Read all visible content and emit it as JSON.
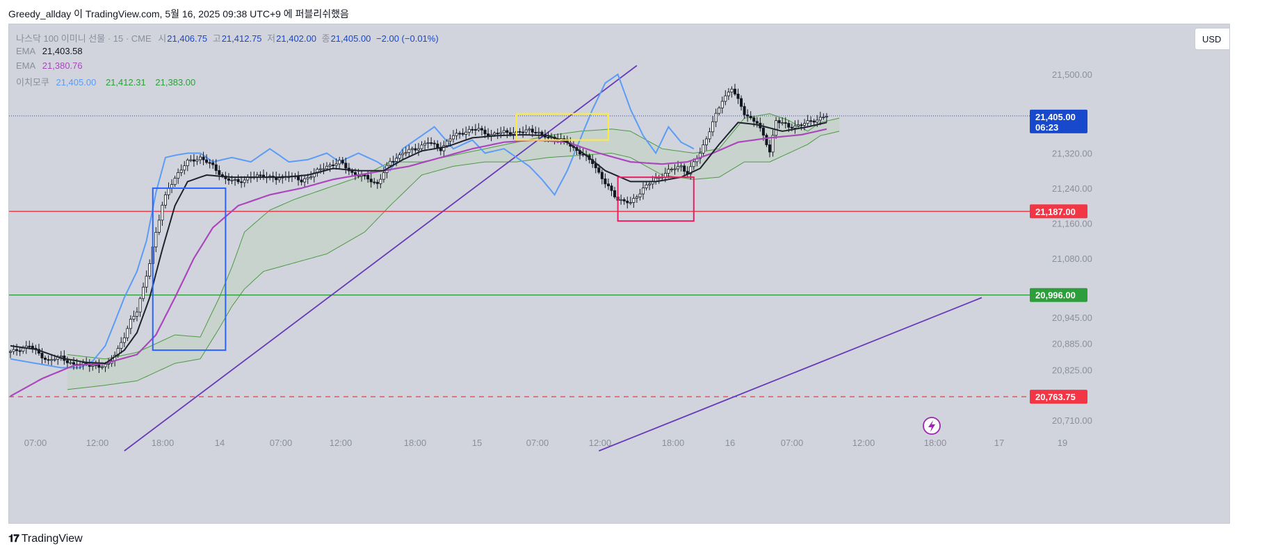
{
  "header": {
    "title": "Greedy_allday 이 TradingView.com, 5월 16, 2025 09:38 UTC+9 에 퍼블리쉬했음"
  },
  "legend": {
    "symbol": "나스닥 100 이미니 선물 · 15 · CME",
    "open_label": "시",
    "open": "21,406.75",
    "high_label": "고",
    "high": "21,412.75",
    "low_label": "저",
    "low": "21,402.00",
    "close_label": "종",
    "close": "21,405.00",
    "change": "−2.00 (−0.01%)",
    "ema1_label": "EMA",
    "ema1": "21,403.58",
    "ema2_label": "EMA",
    "ema2": "21,380.76",
    "ichimoku_label": "이치모쿠",
    "ichi1": "21,405.00",
    "ichi2": "21,412.31",
    "ichi3": "21,383.00"
  },
  "currency_button": "USD",
  "footer": {
    "logo_text": "TradingView"
  },
  "colors": {
    "bg": "#d1d4dc",
    "up": "#ffffff",
    "down": "#131722",
    "ema_fast": "#1e222d",
    "ema_slow": "#ab47bc",
    "chikou": "#5b9cf6",
    "kumo_line": "#4c9a42",
    "kumo_fill": "#c5d3c8",
    "red_line": "#f23645",
    "green_line": "#2e9e3c",
    "trend": "#673ab7",
    "blue_box": "#2962ff",
    "yellow_box": "#ffeb3b",
    "red_box": "#e91e63"
  },
  "chart_data": {
    "type": "candlestick",
    "symbol": "나스닥 100 이미니 선물",
    "timeframe": "15",
    "y_ticks": [
      "21,500.00",
      "21,320.00",
      "21,240.00",
      "21,160.00",
      "21,080.00",
      "20,945.00",
      "20,885.00",
      "20,825.00",
      "20,710.00"
    ],
    "y_tick_values": [
      21500,
      21320,
      21240,
      21160,
      21080,
      20945,
      20885,
      20825,
      20710
    ],
    "x_ticks": [
      "07:00",
      "12:00",
      "18:00",
      "14",
      "07:00",
      "12:00",
      "18:00",
      "15",
      "07:00",
      "12:00",
      "18:00",
      "16",
      "07:00",
      "12:00",
      "18:00",
      "17",
      "19"
    ],
    "price_tags": [
      {
        "label": "21,405.00",
        "sub": "06:23",
        "value": 21405,
        "color": "#1848cc"
      },
      {
        "label": "21,187.00",
        "value": 21187,
        "color": "#f23645"
      },
      {
        "label": "20,996.00",
        "value": 20996,
        "color": "#2e9e3c"
      },
      {
        "label": "20,763.75",
        "value": 20763.75,
        "color": "#f23645"
      }
    ],
    "horizontal_lines": [
      {
        "value": 21405,
        "style": "dotted",
        "color": "#3b4a8c"
      },
      {
        "value": 21187,
        "style": "solid",
        "color": "#f23645"
      },
      {
        "value": 20996,
        "style": "solid",
        "color": "#2e9e3c"
      },
      {
        "value": 20763.75,
        "style": "dashed",
        "color": "#f23645"
      }
    ],
    "price_path": [
      [
        0,
        20865
      ],
      [
        6,
        20880
      ],
      [
        12,
        20845
      ],
      [
        16,
        20855
      ],
      [
        20,
        20835
      ],
      [
        24,
        20840
      ],
      [
        28,
        20830
      ],
      [
        31,
        20840
      ],
      [
        34,
        20870
      ],
      [
        36,
        20900
      ],
      [
        38,
        20940
      ],
      [
        40,
        20960
      ],
      [
        42,
        21010
      ],
      [
        44,
        21070
      ],
      [
        46,
        21140
      ],
      [
        48,
        21200
      ],
      [
        50,
        21240
      ],
      [
        53,
        21275
      ],
      [
        56,
        21300
      ],
      [
        60,
        21310
      ],
      [
        64,
        21290
      ],
      [
        68,
        21260
      ],
      [
        72,
        21255
      ],
      [
        76,
        21265
      ],
      [
        80,
        21270
      ],
      [
        84,
        21260
      ],
      [
        88,
        21270
      ],
      [
        92,
        21255
      ],
      [
        96,
        21275
      ],
      [
        100,
        21290
      ],
      [
        104,
        21300
      ],
      [
        108,
        21275
      ],
      [
        112,
        21265
      ],
      [
        116,
        21250
      ],
      [
        120,
        21300
      ],
      [
        124,
        21320
      ],
      [
        128,
        21330
      ],
      [
        132,
        21345
      ],
      [
        136,
        21330
      ],
      [
        140,
        21360
      ],
      [
        144,
        21370
      ],
      [
        148,
        21375
      ],
      [
        152,
        21360
      ],
      [
        156,
        21370
      ],
      [
        160,
        21365
      ],
      [
        164,
        21375
      ],
      [
        168,
        21360
      ],
      [
        172,
        21355
      ],
      [
        176,
        21345
      ],
      [
        180,
        21320
      ],
      [
        184,
        21300
      ],
      [
        188,
        21250
      ],
      [
        192,
        21215
      ],
      [
        196,
        21205
      ],
      [
        200,
        21240
      ],
      [
        204,
        21260
      ],
      [
        208,
        21280
      ],
      [
        212,
        21290
      ],
      [
        214,
        21275
      ],
      [
        218,
        21320
      ],
      [
        222,
        21390
      ],
      [
        225,
        21440
      ],
      [
        228,
        21470
      ],
      [
        232,
        21410
      ],
      [
        236,
        21390
      ],
      [
        240,
        21325
      ],
      [
        242,
        21395
      ],
      [
        246,
        21380
      ],
      [
        250,
        21385
      ],
      [
        254,
        21395
      ],
      [
        258,
        21405
      ]
    ],
    "ema_fast_path": [
      [
        0,
        20880
      ],
      [
        8,
        20872
      ],
      [
        16,
        20852
      ],
      [
        24,
        20842
      ],
      [
        30,
        20840
      ],
      [
        36,
        20870
      ],
      [
        40,
        20910
      ],
      [
        44,
        20990
      ],
      [
        48,
        21100
      ],
      [
        52,
        21200
      ],
      [
        56,
        21255
      ],
      [
        62,
        21270
      ],
      [
        70,
        21265
      ],
      [
        78,
        21265
      ],
      [
        86,
        21265
      ],
      [
        94,
        21270
      ],
      [
        102,
        21285
      ],
      [
        110,
        21280
      ],
      [
        118,
        21280
      ],
      [
        124,
        21305
      ],
      [
        130,
        21325
      ],
      [
        138,
        21335
      ],
      [
        146,
        21355
      ],
      [
        154,
        21360
      ],
      [
        162,
        21362
      ],
      [
        170,
        21360
      ],
      [
        176,
        21345
      ],
      [
        182,
        21315
      ],
      [
        188,
        21280
      ],
      [
        196,
        21255
      ],
      [
        204,
        21255
      ],
      [
        212,
        21265
      ],
      [
        218,
        21285
      ],
      [
        224,
        21340
      ],
      [
        230,
        21390
      ],
      [
        236,
        21385
      ],
      [
        244,
        21370
      ],
      [
        252,
        21380
      ],
      [
        258,
        21390
      ]
    ],
    "ema_slow_path": [
      [
        0,
        20765
      ],
      [
        10,
        20805
      ],
      [
        20,
        20835
      ],
      [
        30,
        20840
      ],
      [
        40,
        20860
      ],
      [
        46,
        20905
      ],
      [
        52,
        20990
      ],
      [
        58,
        21080
      ],
      [
        64,
        21150
      ],
      [
        72,
        21200
      ],
      [
        82,
        21225
      ],
      [
        92,
        21240
      ],
      [
        102,
        21260
      ],
      [
        110,
        21270
      ],
      [
        118,
        21280
      ],
      [
        126,
        21290
      ],
      [
        136,
        21310
      ],
      [
        146,
        21330
      ],
      [
        156,
        21345
      ],
      [
        166,
        21350
      ],
      [
        176,
        21345
      ],
      [
        186,
        21320
      ],
      [
        196,
        21300
      ],
      [
        206,
        21295
      ],
      [
        214,
        21300
      ],
      [
        222,
        21320
      ],
      [
        230,
        21345
      ],
      [
        240,
        21355
      ],
      [
        250,
        21362
      ],
      [
        258,
        21375
      ]
    ],
    "chikou_path": [
      [
        0,
        20850
      ],
      [
        8,
        20840
      ],
      [
        16,
        20830
      ],
      [
        22,
        20830
      ],
      [
        26,
        20845
      ],
      [
        30,
        20880
      ],
      [
        33,
        20935
      ],
      [
        36,
        20990
      ],
      [
        40,
        21050
      ],
      [
        43,
        21120
      ],
      [
        46,
        21230
      ],
      [
        49,
        21310
      ],
      [
        52,
        21315
      ],
      [
        56,
        21320
      ],
      [
        60,
        21320
      ],
      [
        64,
        21300
      ],
      [
        70,
        21310
      ],
      [
        76,
        21300
      ],
      [
        82,
        21330
      ],
      [
        88,
        21300
      ],
      [
        94,
        21305
      ],
      [
        100,
        21320
      ],
      [
        104,
        21300
      ],
      [
        110,
        21320
      ],
      [
        116,
        21300
      ],
      [
        120,
        21280
      ],
      [
        124,
        21330
      ],
      [
        128,
        21350
      ],
      [
        134,
        21380
      ],
      [
        140,
        21330
      ],
      [
        146,
        21350
      ],
      [
        150,
        21320
      ],
      [
        156,
        21330
      ],
      [
        160,
        21310
      ],
      [
        164,
        21290
      ],
      [
        168,
        21260
      ],
      [
        172,
        21225
      ],
      [
        176,
        21280
      ],
      [
        180,
        21350
      ],
      [
        184,
        21420
      ],
      [
        188,
        21480
      ],
      [
        192,
        21500
      ],
      [
        196,
        21420
      ],
      [
        200,
        21360
      ],
      [
        204,
        21320
      ],
      [
        208,
        21380
      ],
      [
        212,
        21345
      ],
      [
        216,
        21330
      ]
    ],
    "kumo_top": [
      [
        18,
        20860
      ],
      [
        30,
        20850
      ],
      [
        40,
        20865
      ],
      [
        52,
        20905
      ],
      [
        60,
        20900
      ],
      [
        66,
        20990
      ],
      [
        70,
        21060
      ],
      [
        74,
        21140
      ],
      [
        82,
        21190
      ],
      [
        90,
        21215
      ],
      [
        100,
        21240
      ],
      [
        112,
        21270
      ],
      [
        120,
        21300
      ],
      [
        130,
        21300
      ],
      [
        140,
        21315
      ],
      [
        150,
        21330
      ],
      [
        160,
        21345
      ],
      [
        170,
        21360
      ],
      [
        180,
        21370
      ],
      [
        190,
        21375
      ],
      [
        196,
        21370
      ],
      [
        206,
        21330
      ],
      [
        216,
        21320
      ],
      [
        224,
        21330
      ],
      [
        232,
        21400
      ],
      [
        240,
        21410
      ],
      [
        246,
        21395
      ],
      [
        252,
        21370
      ],
      [
        256,
        21390
      ],
      [
        262,
        21400
      ]
    ],
    "kumo_bottom": [
      [
        18,
        20780
      ],
      [
        30,
        20790
      ],
      [
        40,
        20800
      ],
      [
        52,
        20840
      ],
      [
        60,
        20850
      ],
      [
        66,
        20920
      ],
      [
        70,
        20970
      ],
      [
        74,
        21010
      ],
      [
        80,
        21050
      ],
      [
        90,
        21070
      ],
      [
        100,
        21090
      ],
      [
        112,
        21140
      ],
      [
        120,
        21200
      ],
      [
        130,
        21270
      ],
      [
        140,
        21290
      ],
      [
        150,
        21300
      ],
      [
        160,
        21300
      ],
      [
        170,
        21310
      ],
      [
        180,
        21315
      ],
      [
        190,
        21320
      ],
      [
        196,
        21310
      ],
      [
        206,
        21270
      ],
      [
        216,
        21260
      ],
      [
        224,
        21265
      ],
      [
        232,
        21300
      ],
      [
        240,
        21300
      ],
      [
        246,
        21320
      ],
      [
        252,
        21340
      ],
      [
        256,
        21360
      ],
      [
        262,
        21370
      ]
    ],
    "trendlines": [
      {
        "from": [
          36,
          20640
        ],
        "to": [
          198,
          21520
        ]
      },
      {
        "from": [
          186,
          20640
        ],
        "to": [
          307,
          20990
        ]
      }
    ],
    "boxes": [
      {
        "color": "#2962ff",
        "x0": 45,
        "x1": 68,
        "y0": 20870,
        "y1": 21240
      },
      {
        "color": "#ffeb3b",
        "x0": 160,
        "x1": 189,
        "y0": 21350,
        "y1": 21410
      },
      {
        "color": "#e91e63",
        "x0": 192,
        "x1": 216,
        "y0": 21165,
        "y1": 21265
      }
    ]
  }
}
